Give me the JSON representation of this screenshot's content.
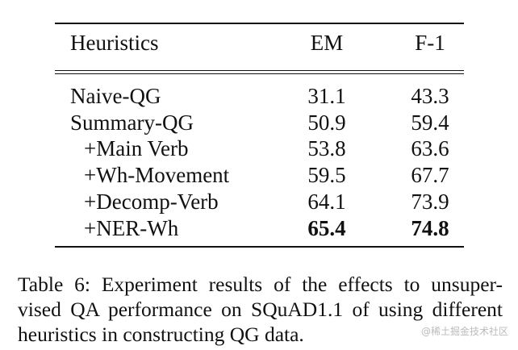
{
  "table": {
    "columns": [
      "Heuristics",
      "EM",
      "F-1"
    ],
    "rows": [
      [
        "Naive-QG",
        31.1,
        43.3
      ],
      [
        "Summary-QG",
        50.9,
        59.4
      ],
      [
        "+Main Verb",
        53.8,
        63.6
      ],
      [
        "+Wh-Movement",
        59.5,
        67.7
      ],
      [
        "+Decomp-Verb",
        64.1,
        73.9
      ],
      [
        "+NER-Wh",
        65.4,
        74.8
      ]
    ]
  },
  "caption": [
    "Table 6: Experiment results of the effects to unsuper-",
    "vised QA performance on SQuAD1.1 of using different",
    "heuristics in constructing QG data."
  ],
  "watermark": "@稀土掘金技术社区"
}
